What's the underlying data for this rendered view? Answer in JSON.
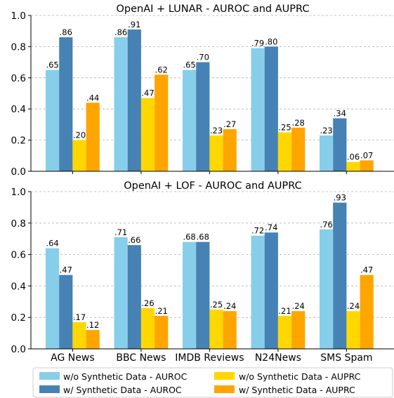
{
  "colors": {
    "wo_auroc": "#87ceeb",
    "w_auroc": "#4682b4",
    "wo_auprc": "#ffd700",
    "w_auprc": "#ffa500"
  },
  "legend": [
    {
      "label": "w/o Synthetic Data - AUROC",
      "color": "#87ceeb"
    },
    {
      "label": "w/ Synthetic Data - AUROC",
      "color": "#4682b4"
    },
    {
      "label": "w/o Synthetic Data - AUPRC",
      "color": "#ffd700"
    },
    {
      "label": "w/ Synthetic Data - AUPRC",
      "color": "#ffa500"
    }
  ],
  "chart_data": [
    {
      "type": "bar",
      "title": "OpenAI + LUNAR - AUROC and AUPRC",
      "categories": [
        "AG News",
        "BBC News",
        "IMDB Reviews",
        "N24News",
        "SMS Spam"
      ],
      "ylim": [
        0,
        1.0
      ],
      "yticks": [
        "0.0",
        "0.2",
        "0.4",
        "0.6",
        "0.8",
        "1.0"
      ],
      "grid": true,
      "series": [
        {
          "name": "w/o Synthetic Data - AUROC",
          "values": [
            0.65,
            0.86,
            0.65,
            0.79,
            0.23
          ],
          "labels": [
            ".65",
            ".86",
            ".65",
            ".79",
            ".23"
          ]
        },
        {
          "name": "w/ Synthetic Data - AUROC",
          "values": [
            0.86,
            0.91,
            0.7,
            0.8,
            0.34
          ],
          "labels": [
            ".86",
            ".91",
            ".70",
            ".80",
            ".34"
          ]
        },
        {
          "name": "w/o Synthetic Data - AUPRC",
          "values": [
            0.2,
            0.47,
            0.23,
            0.25,
            0.06
          ],
          "labels": [
            ".20",
            ".47",
            ".23",
            ".25",
            ".06"
          ]
        },
        {
          "name": "w/ Synthetic Data - AUPRC",
          "values": [
            0.44,
            0.62,
            0.27,
            0.28,
            0.07
          ],
          "labels": [
            ".44",
            ".62",
            ".27",
            ".28",
            ".07"
          ]
        }
      ]
    },
    {
      "type": "bar",
      "title": "OpenAI + LOF - AUROC and AUPRC",
      "categories": [
        "AG News",
        "BBC News",
        "IMDB Reviews",
        "N24News",
        "SMS Spam"
      ],
      "ylim": [
        0,
        1.0
      ],
      "yticks": [
        "0.0",
        "0.2",
        "0.4",
        "0.6",
        "0.8",
        "1.0"
      ],
      "grid": true,
      "series": [
        {
          "name": "w/o Synthetic Data - AUROC",
          "values": [
            0.64,
            0.71,
            0.68,
            0.72,
            0.76
          ],
          "labels": [
            ".64",
            ".71",
            ".68",
            ".72",
            ".76"
          ]
        },
        {
          "name": "w/ Synthetic Data - AUROC",
          "values": [
            0.47,
            0.66,
            0.68,
            0.74,
            0.93
          ],
          "labels": [
            ".47",
            ".66",
            ".68",
            ".74",
            ".93"
          ]
        },
        {
          "name": "w/o Synthetic Data - AUPRC",
          "values": [
            0.17,
            0.26,
            0.25,
            0.21,
            0.24
          ],
          "labels": [
            ".17",
            ".26",
            ".25",
            ".21",
            ".24"
          ]
        },
        {
          "name": "w/ Synthetic Data - AUPRC",
          "values": [
            0.12,
            0.21,
            0.24,
            0.24,
            0.47
          ],
          "labels": [
            ".12",
            ".21",
            ".24",
            ".24",
            ".47"
          ]
        }
      ]
    }
  ]
}
